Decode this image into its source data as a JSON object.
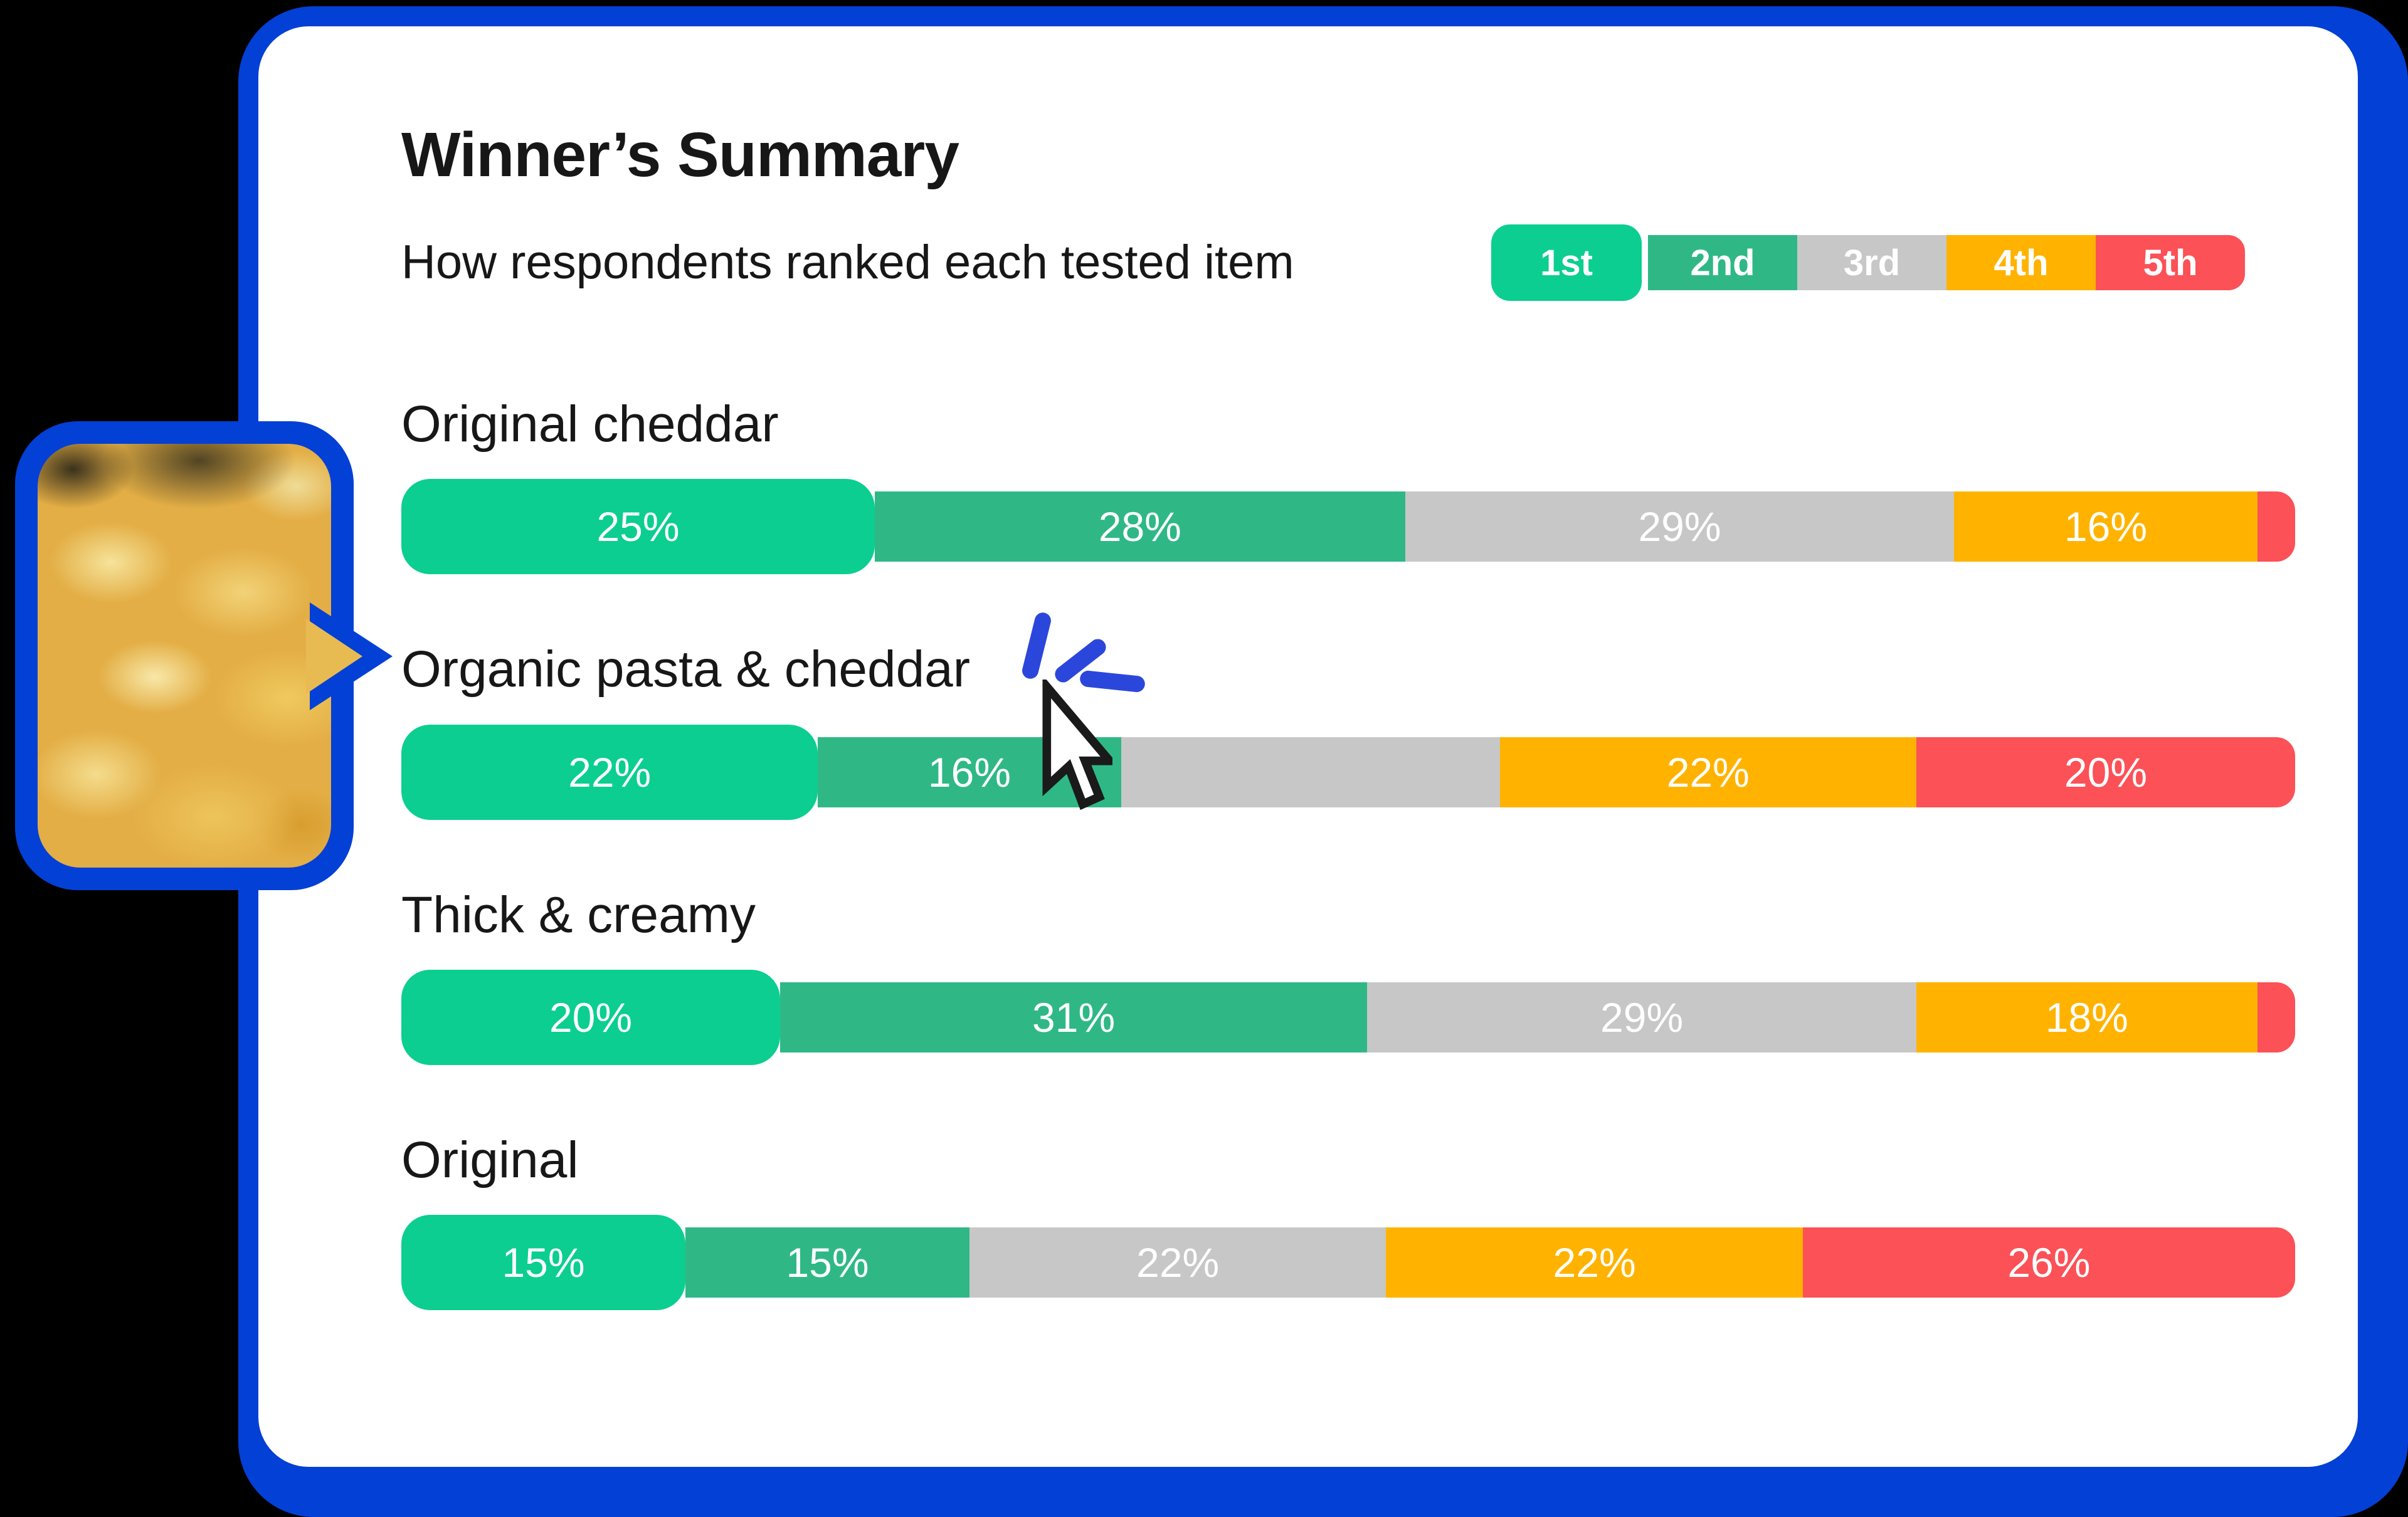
{
  "colors": {
    "background": "#000000",
    "frame_blue": "#0340D6",
    "card_white": "#FFFFFF",
    "text_dark": "#171717",
    "click_burst_blue": "#2B47DB",
    "rank_colors": {
      "1st": "#0BCE90",
      "2nd": "#2FB886",
      "3rd": "#C7C7C7",
      "4th": "#FFB300",
      "5th": "#FB5157"
    }
  },
  "card": {
    "title": "Winner’s Summary",
    "subtitle": "How respondents ranked each tested item"
  },
  "legend": {
    "items": [
      {
        "label": "1st",
        "rank": "1st"
      },
      {
        "label": "2nd",
        "rank": "2nd"
      },
      {
        "label": "3rd",
        "rank": "3rd"
      },
      {
        "label": "4th",
        "rank": "4th"
      },
      {
        "label": "5th",
        "rank": "5th"
      }
    ]
  },
  "chart_data": {
    "type": "bar",
    "stacked": true,
    "orientation": "horizontal",
    "units": "percent",
    "xlim": [
      0,
      100
    ],
    "legend_position": "top-right",
    "legend": [
      "1st",
      "2nd",
      "3rd",
      "4th",
      "5th"
    ],
    "categories": [
      "Original cheddar",
      "Organic pasta & cheddar",
      "Thick & creamy",
      "Original"
    ],
    "series": [
      {
        "name": "1st",
        "values": [
          25,
          22,
          20,
          15
        ]
      },
      {
        "name": "2nd",
        "values": [
          28,
          16,
          31,
          15
        ]
      },
      {
        "name": "3rd",
        "values": [
          29,
          20,
          29,
          22
        ]
      },
      {
        "name": "4th",
        "values": [
          16,
          22,
          18,
          22
        ]
      },
      {
        "name": "5th",
        "values": [
          2,
          20,
          2,
          26
        ]
      }
    ],
    "data_labels": [
      [
        "25%",
        "28%",
        "29%",
        "16%",
        ""
      ],
      [
        "22%",
        "16%",
        "",
        "22%",
        "20%"
      ],
      [
        "20%",
        "31%",
        "29%",
        "18%",
        ""
      ],
      [
        "15%",
        "15%",
        "22%",
        "22%",
        "26%"
      ]
    ]
  },
  "callout": {
    "image_alt": "mac-and-cheese-shells-photo"
  },
  "cursor": {
    "type": "arrow-pointer-with-click-burst"
  }
}
